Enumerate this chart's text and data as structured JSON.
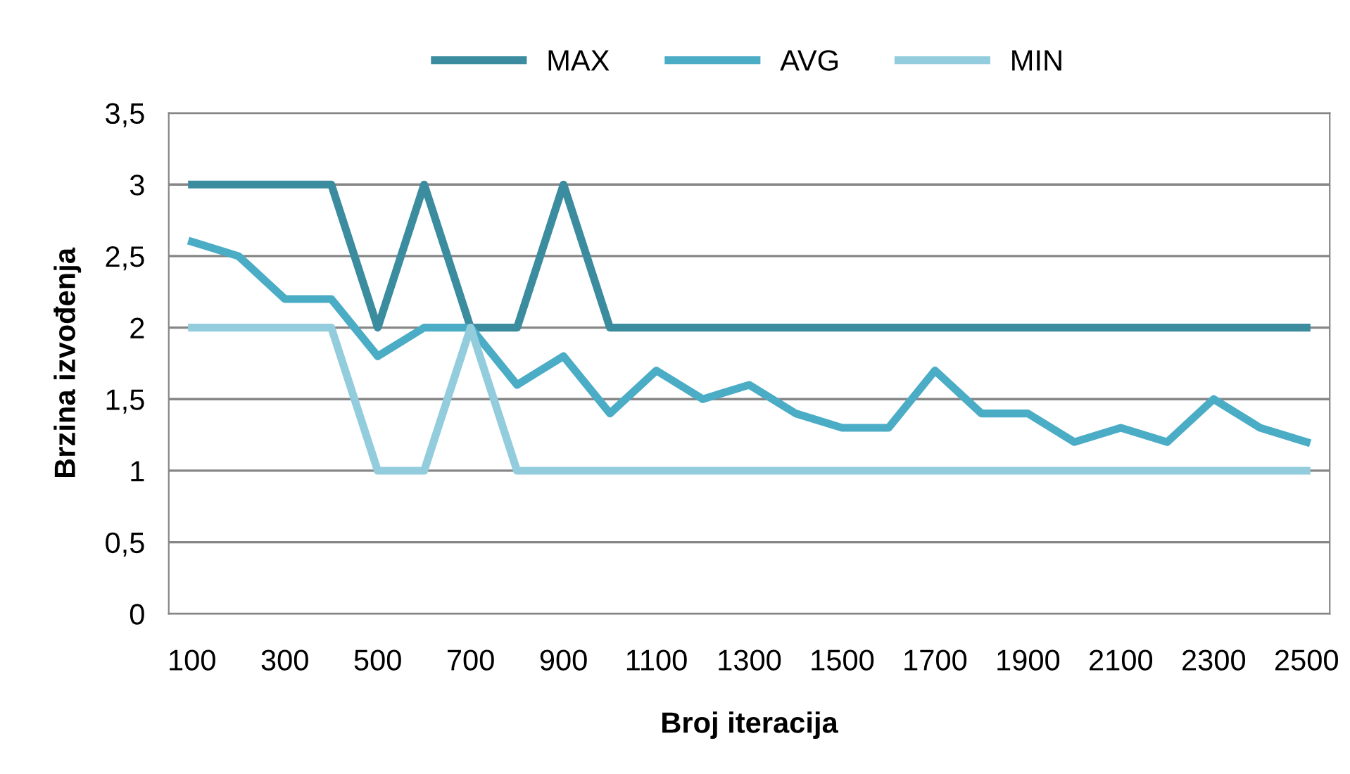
{
  "chart_data": {
    "type": "line",
    "xlabel": "Broj iteracija",
    "ylabel": "Brzina izvođenja",
    "categories": [
      "100",
      null,
      "300",
      null,
      "500",
      null,
      "700",
      null,
      "900",
      null,
      "1100",
      null,
      "1300",
      null,
      "1500",
      null,
      "1700",
      null,
      "1900",
      null,
      "2100",
      null,
      "2300",
      null,
      "2500"
    ],
    "series": [
      {
        "name": "MAX",
        "color": "#3a8c9e",
        "values": [
          3,
          3,
          3,
          3,
          2,
          3,
          2,
          2,
          3,
          2,
          2,
          2,
          2,
          2,
          2,
          2,
          2,
          2,
          2,
          2,
          2,
          2,
          2,
          2,
          2
        ]
      },
      {
        "name": "AVG",
        "color": "#4bacc6",
        "values": [
          2.6,
          2.5,
          2.2,
          2.2,
          1.8,
          2.0,
          2.0,
          1.6,
          1.8,
          1.4,
          1.7,
          1.5,
          1.6,
          1.4,
          1.3,
          1.3,
          1.7,
          1.4,
          1.4,
          1.2,
          1.3,
          1.2,
          1.5,
          1.3,
          1.2
        ]
      },
      {
        "name": "MIN",
        "color": "#93cddd",
        "values": [
          2,
          2,
          2,
          2,
          1,
          1,
          2,
          1,
          1,
          1,
          1,
          1,
          1,
          1,
          1,
          1,
          1,
          1,
          1,
          1,
          1,
          1,
          1,
          1,
          1
        ]
      }
    ],
    "ylim": [
      0,
      3.5
    ],
    "yticks": [
      0,
      {
        "value": 0.5,
        "label": "0,5"
      },
      1,
      {
        "value": 1.5,
        "label": "1,5"
      },
      2,
      {
        "value": 2.5,
        "label": "2,5"
      },
      3,
      {
        "value": 3.5,
        "label": "3,5"
      }
    ],
    "grid": "y",
    "legend": "top",
    "marker": "none",
    "line_style": "solid"
  }
}
